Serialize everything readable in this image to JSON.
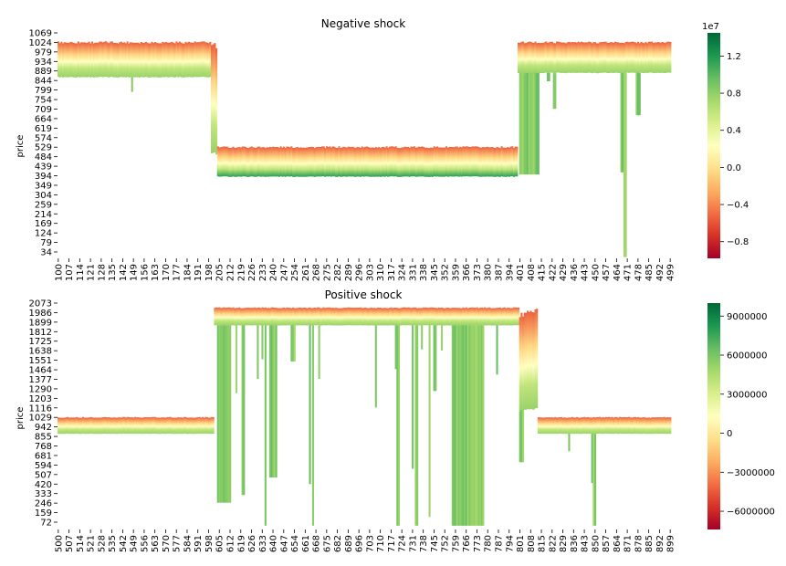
{
  "chart_data": [
    {
      "type": "heatmap",
      "title": "Negative shock",
      "ylabel": "price",
      "xlabel": "",
      "x_range": [
        100,
        499
      ],
      "x_tick_labels": [
        "100",
        "107",
        "114",
        "121",
        "128",
        "135",
        "142",
        "149",
        "156",
        "163",
        "170",
        "177",
        "184",
        "191",
        "198",
        "205",
        "212",
        "219",
        "226",
        "233",
        "240",
        "247",
        "254",
        "261",
        "268",
        "275",
        "282",
        "289",
        "296",
        "303",
        "310",
        "317",
        "324",
        "331",
        "338",
        "345",
        "352",
        "359",
        "366",
        "373",
        "380",
        "387",
        "394",
        "401",
        "408",
        "415",
        "422",
        "429",
        "436",
        "443",
        "450",
        "457",
        "464",
        "471",
        "478",
        "485",
        "492",
        "499"
      ],
      "y_tick_labels": [
        "1069",
        "1024",
        "979",
        "934",
        "889",
        "844",
        "799",
        "754",
        "709",
        "664",
        "619",
        "574",
        "529",
        "484",
        "439",
        "394",
        "349",
        "304",
        "259",
        "214",
        "169",
        "124",
        "79",
        "34"
      ],
      "colorbar": {
        "ticks": [
          "1.2",
          "0.8",
          "0.4",
          "0.0",
          "−0.4",
          "−0.8"
        ],
        "tick_values": [
          1.2,
          0.8,
          0.4,
          0.0,
          -0.4,
          -0.8
        ],
        "range": [
          -0.98,
          1.45
        ],
        "exponent_label": "1e7"
      },
      "grid": false,
      "colormap": "RdYlGn",
      "regimes": [
        {
          "x_from": 100,
          "x_to": 199,
          "ask_top": 1024,
          "best_price": 934,
          "bid_bottom": 860
        },
        {
          "x_from": 200,
          "x_to": 203,
          "ask_top": 1010,
          "best_price": 600,
          "bid_bottom": 500
        },
        {
          "x_from": 204,
          "x_to": 399,
          "ask_top": 529,
          "best_price": 460,
          "bid_bottom": 390
        },
        {
          "x_from": 400,
          "x_to": 499,
          "ask_top": 1024,
          "best_price": 950,
          "bid_bottom": 880
        }
      ],
      "deep_bars": [
        {
          "x": 148,
          "y_bottom": 790
        },
        {
          "x": 401,
          "y_bottom": 400
        },
        {
          "x": 402,
          "y_bottom": 400
        },
        {
          "x": 403,
          "y_bottom": 400
        },
        {
          "x": 404,
          "y_bottom": 400
        },
        {
          "x": 405,
          "y_bottom": 400
        },
        {
          "x": 406,
          "y_bottom": 400
        },
        {
          "x": 407,
          "y_bottom": 400
        },
        {
          "x": 408,
          "y_bottom": 400
        },
        {
          "x": 409,
          "y_bottom": 400
        },
        {
          "x": 410,
          "y_bottom": 400
        },
        {
          "x": 411,
          "y_bottom": 400
        },
        {
          "x": 412,
          "y_bottom": 400
        },
        {
          "x": 413,
          "y_bottom": 400
        },
        {
          "x": 419,
          "y_bottom": 840
        },
        {
          "x": 420,
          "y_bottom": 840
        },
        {
          "x": 423,
          "y_bottom": 710
        },
        {
          "x": 424,
          "y_bottom": 710
        },
        {
          "x": 467,
          "y_bottom": 410
        },
        {
          "x": 468,
          "y_bottom": 410
        },
        {
          "x": 469,
          "y_bottom": 10
        },
        {
          "x": 470,
          "y_bottom": 10
        },
        {
          "x": 477,
          "y_bottom": 680
        },
        {
          "x": 478,
          "y_bottom": 680
        },
        {
          "x": 479,
          "y_bottom": 680
        }
      ]
    },
    {
      "type": "heatmap",
      "title": "Positive shock",
      "ylabel": "price",
      "xlabel": "",
      "x_range": [
        500,
        899
      ],
      "x_tick_labels": [
        "500",
        "507",
        "514",
        "521",
        "528",
        "535",
        "542",
        "549",
        "556",
        "563",
        "570",
        "577",
        "584",
        "591",
        "598",
        "605",
        "612",
        "619",
        "626",
        "633",
        "640",
        "647",
        "654",
        "661",
        "668",
        "675",
        "682",
        "689",
        "696",
        "703",
        "710",
        "717",
        "724",
        "731",
        "738",
        "745",
        "752",
        "759",
        "766",
        "773",
        "780",
        "787",
        "794",
        "801",
        "808",
        "815",
        "822",
        "829",
        "836",
        "843",
        "850",
        "857",
        "864",
        "871",
        "878",
        "885",
        "892",
        "899"
      ],
      "y_tick_labels": [
        "2073",
        "1986",
        "1899",
        "1812",
        "1725",
        "1638",
        "1551",
        "1464",
        "1377",
        "1290",
        "1203",
        "1116",
        "1029",
        "942",
        "855",
        "768",
        "681",
        "594",
        "507",
        "420",
        "333",
        "246",
        "159",
        "72"
      ],
      "colorbar": {
        "ticks": [
          "9000000",
          "6000000",
          "3000000",
          "0",
          "−3000000",
          "−6000000"
        ],
        "tick_values": [
          9000000,
          6000000,
          3000000,
          0,
          -3000000,
          -6000000
        ],
        "range": [
          -7400000,
          10000000
        ]
      },
      "grid": false,
      "colormap": "RdYlGn",
      "regimes": [
        {
          "x_from": 500,
          "x_to": 601,
          "ask_top": 1029,
          "best_price": 960,
          "bid_bottom": 880
        },
        {
          "x_from": 602,
          "x_to": 800,
          "ask_top": 2030,
          "best_price": 1960,
          "bid_bottom": 1870
        },
        {
          "x_from": 801,
          "x_to": 812,
          "ask_top": 1986,
          "best_price": 1160,
          "bid_bottom": 1100
        },
        {
          "x_from": 813,
          "x_to": 899,
          "ask_top": 1029,
          "best_price": 960,
          "bid_bottom": 880
        }
      ],
      "deep_bars": [
        {
          "x": 604,
          "y_bottom": 250
        },
        {
          "x": 605,
          "y_bottom": 250
        },
        {
          "x": 606,
          "y_bottom": 250
        },
        {
          "x": 607,
          "y_bottom": 250
        },
        {
          "x": 608,
          "y_bottom": 250
        },
        {
          "x": 609,
          "y_bottom": 250
        },
        {
          "x": 610,
          "y_bottom": 250
        },
        {
          "x": 611,
          "y_bottom": 250
        },
        {
          "x": 612,
          "y_bottom": 250
        },
        {
          "x": 616,
          "y_bottom": 1250
        },
        {
          "x": 620,
          "y_bottom": 320
        },
        {
          "x": 621,
          "y_bottom": 320
        },
        {
          "x": 630,
          "y_bottom": 1380
        },
        {
          "x": 633,
          "y_bottom": 1560
        },
        {
          "x": 635,
          "y_bottom": 40
        },
        {
          "x": 638,
          "y_bottom": 480
        },
        {
          "x": 639,
          "y_bottom": 480
        },
        {
          "x": 640,
          "y_bottom": 480
        },
        {
          "x": 641,
          "y_bottom": 480
        },
        {
          "x": 642,
          "y_bottom": 480
        },
        {
          "x": 652,
          "y_bottom": 1540
        },
        {
          "x": 653,
          "y_bottom": 1540
        },
        {
          "x": 654,
          "y_bottom": 1540
        },
        {
          "x": 664,
          "y_bottom": 420
        },
        {
          "x": 666,
          "y_bottom": 40
        },
        {
          "x": 670,
          "y_bottom": 1380
        },
        {
          "x": 707,
          "y_bottom": 1120
        },
        {
          "x": 720,
          "y_bottom": 1470
        },
        {
          "x": 721,
          "y_bottom": 40
        },
        {
          "x": 722,
          "y_bottom": 40
        },
        {
          "x": 731,
          "y_bottom": 560
        },
        {
          "x": 733,
          "y_bottom": 40
        },
        {
          "x": 734,
          "y_bottom": 40
        },
        {
          "x": 737,
          "y_bottom": 1650
        },
        {
          "x": 742,
          "y_bottom": 120
        },
        {
          "x": 745,
          "y_bottom": 1270
        },
        {
          "x": 746,
          "y_bottom": 1270
        },
        {
          "x": 750,
          "y_bottom": 1640
        },
        {
          "x": 757,
          "y_bottom": 40
        },
        {
          "x": 758,
          "y_bottom": 40
        },
        {
          "x": 759,
          "y_bottom": 40
        },
        {
          "x": 760,
          "y_bottom": 40
        },
        {
          "x": 761,
          "y_bottom": 40
        },
        {
          "x": 762,
          "y_bottom": 40
        },
        {
          "x": 763,
          "y_bottom": 40
        },
        {
          "x": 764,
          "y_bottom": 40
        },
        {
          "x": 765,
          "y_bottom": 40
        },
        {
          "x": 766,
          "y_bottom": 40
        },
        {
          "x": 767,
          "y_bottom": 40
        },
        {
          "x": 768,
          "y_bottom": 40
        },
        {
          "x": 769,
          "y_bottom": 40
        },
        {
          "x": 770,
          "y_bottom": 40
        },
        {
          "x": 771,
          "y_bottom": 40
        },
        {
          "x": 772,
          "y_bottom": 40
        },
        {
          "x": 773,
          "y_bottom": 40
        },
        {
          "x": 774,
          "y_bottom": 40
        },
        {
          "x": 775,
          "y_bottom": 40
        },
        {
          "x": 776,
          "y_bottom": 40
        },
        {
          "x": 777,
          "y_bottom": 40
        },
        {
          "x": 786,
          "y_bottom": 1420
        },
        {
          "x": 801,
          "y_bottom": 620
        },
        {
          "x": 802,
          "y_bottom": 620
        },
        {
          "x": 803,
          "y_bottom": 620
        },
        {
          "x": 833,
          "y_bottom": 720
        },
        {
          "x": 848,
          "y_bottom": 430
        },
        {
          "x": 849,
          "y_bottom": 40
        },
        {
          "x": 850,
          "y_bottom": 40
        }
      ]
    }
  ]
}
